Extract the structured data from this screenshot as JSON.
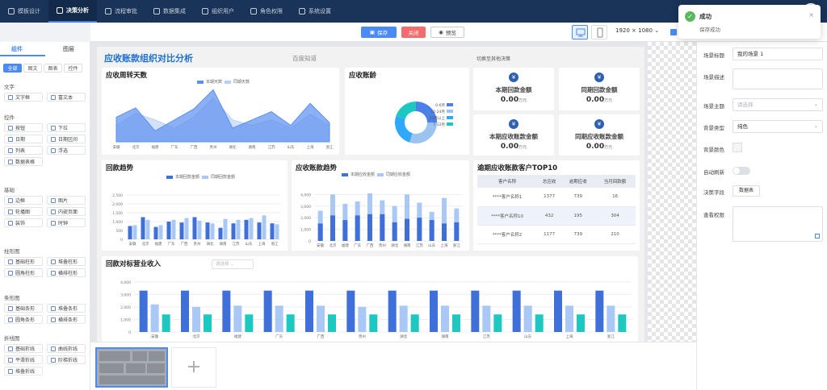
{
  "nav": {
    "items": [
      {
        "label": "模板设计",
        "icon": "template-icon"
      },
      {
        "label": "决策分析",
        "icon": "analysis-icon"
      },
      {
        "label": "流程审批",
        "icon": "workflow-icon"
      },
      {
        "label": "数据集成",
        "icon": "data-icon"
      },
      {
        "label": "组织用户",
        "icon": "org-icon"
      },
      {
        "label": "角色权限",
        "icon": "role-icon"
      },
      {
        "label": "系统设置",
        "icon": "settings-icon"
      }
    ],
    "active_index": 1
  },
  "toolbar": {
    "save": "保存",
    "close": "关闭",
    "preview": "预览",
    "resolution": "1920 × 1080"
  },
  "toast": {
    "title": "成功",
    "message": "保存成功"
  },
  "left_panel": {
    "tabs": [
      "组件",
      "图层"
    ],
    "subtabs": [
      "全部",
      "图文",
      "图表",
      "控件"
    ],
    "categories": [
      {
        "name": "文字",
        "items": [
          "文字框",
          "富文本"
        ]
      },
      {
        "name": "控件",
        "items": [
          "按钮",
          "下拉",
          "日期",
          "日期区间",
          "列表",
          "浮选",
          "数据表格"
        ]
      },
      {
        "name": "基础",
        "items": [
          "边框",
          "图片",
          "轮播图",
          "内嵌页面",
          "装饰",
          "时钟"
        ]
      },
      {
        "name": "柱形图",
        "items": [
          "基础柱形",
          "堆叠柱形",
          "圆角柱形",
          "横排柱形"
        ]
      },
      {
        "name": "条形图",
        "items": [
          "基础条形",
          "堆叠条形",
          "圆角条形",
          "横排条形"
        ]
      },
      {
        "name": "折线图",
        "items": [
          "基础折线",
          "曲线折线",
          "平滑折线",
          "阶梯折线",
          "堆叠折线"
        ]
      }
    ]
  },
  "dashboard": {
    "title": "应收账款组织对比分析",
    "subtitle": "百度知道",
    "switch_text": "切换至其他决策",
    "cards": {
      "turnover": {
        "title": "应收周转天数",
        "legend": [
          "本期天数",
          "同期天数"
        ]
      },
      "aging": {
        "title": "应收账龄"
      },
      "collection_trend": {
        "title": "回款趋势",
        "legend": [
          "本期回款金额",
          "同期回款金额"
        ]
      },
      "receivable_trend": {
        "title": "应收账款趋势",
        "legend": [
          "本期应收金额",
          "同期应收金额"
        ]
      },
      "top10": {
        "title": "逾期应收账款客户TOP10"
      },
      "revenue": {
        "title": "回款对标营业收入",
        "select_placeholder": "请选择"
      }
    },
    "stats": [
      {
        "label": "本期回款金额",
        "value": "0.00",
        "unit": "万元"
      },
      {
        "label": "同期回款金额",
        "value": "0.00",
        "unit": "万元"
      },
      {
        "label": "本期应收账款金额",
        "value": "0.00",
        "unit": "万元"
      },
      {
        "label": "同期应收账款金额",
        "value": "0.00",
        "unit": "万元"
      }
    ],
    "top10_table": {
      "columns": [
        "客户名称",
        "总应收",
        "逾期应收",
        "当月回款额"
      ],
      "rows": [
        [
          "****客户名称1",
          "1377",
          "739",
          "16"
        ],
        [
          "****客户名称10",
          "432",
          "195",
          "304"
        ],
        [
          "****客户名称2",
          "1177",
          "739",
          "210"
        ]
      ]
    }
  },
  "right_panel": {
    "fields": [
      {
        "label": "场景标题",
        "value": "我的场景 1"
      },
      {
        "label": "场景描述",
        "value": ""
      },
      {
        "label": "场景主题",
        "placeholder": "请选择"
      },
      {
        "label": "背景类型",
        "value": "纯色"
      },
      {
        "label": "背景颜色",
        "value": ""
      },
      {
        "label": "自动刷新",
        "value": ""
      },
      {
        "label": "决策字段",
        "button": "数据表"
      },
      {
        "label": "查看权限",
        "value": ""
      }
    ]
  },
  "chart_data": [
    {
      "type": "area",
      "title": "应收周转天数",
      "categories": [
        "安徽",
        "北京",
        "福建",
        "广东",
        "广西",
        "贵州",
        "湖北",
        "湖南",
        "江苏",
        "山东",
        "上海",
        "浙江"
      ],
      "series": [
        {
          "name": "本期天数",
          "values": [
            45,
            62,
            20,
            40,
            60,
            95,
            25,
            40,
            55,
            30,
            70,
            35
          ]
        },
        {
          "name": "同期天数",
          "values": [
            30,
            52,
            40,
            25,
            45,
            80,
            40,
            30,
            40,
            25,
            50,
            30
          ]
        }
      ]
    },
    {
      "type": "pie",
      "title": "应收账龄",
      "categories": [
        "0-6月",
        "12-24月",
        "24月以上",
        "7-12月"
      ],
      "values": [
        25,
        30,
        25,
        20
      ],
      "colors": [
        "#4a80e8",
        "#9cc3f0",
        "#2fa8ff",
        "#1dc8c0"
      ]
    },
    {
      "type": "bar",
      "title": "回款趋势",
      "categories": [
        "安徽",
        "北京",
        "福建",
        "广东",
        "广西",
        "贵州",
        "湖北",
        "湖南",
        "江苏",
        "山东",
        "上海",
        "浙江"
      ],
      "ylim": [
        0,
        3000
      ],
      "yticks": [
        "0",
        "500",
        "1,000",
        "1,500",
        "2,000",
        "2,500"
      ],
      "series": [
        {
          "name": "本期回款金额",
          "values": [
            750,
            1250,
            700,
            1000,
            950,
            1250,
            950,
            650,
            900,
            1100,
            950,
            900
          ]
        },
        {
          "name": "同期回款金额",
          "values": [
            800,
            1100,
            800,
            1100,
            1200,
            1050,
            900,
            1150,
            1100,
            1200,
            1350,
            850
          ]
        }
      ]
    },
    {
      "type": "bar",
      "title": "应收账款趋势",
      "categories": [
        "安徽",
        "北京",
        "福建",
        "广东",
        "广西",
        "贵州",
        "湖北",
        "湖南",
        "江苏",
        "山东",
        "上海",
        "浙江"
      ],
      "ylim": [
        0,
        5000
      ],
      "yticks": [
        "0",
        "1,000",
        "2,000",
        "3,000",
        "4,000"
      ],
      "series": [
        {
          "name": "本期应收金额",
          "values": [
            1500,
            2200,
            1800,
            2200,
            2300,
            2300,
            1600,
            1900,
            2000,
            1800,
            1500,
            1600
          ]
        },
        {
          "name": "同期应收金额",
          "values": [
            2600,
            4000,
            3200,
            3400,
            4100,
            3500,
            3000,
            4000,
            3300,
            2500,
            3700,
            2800
          ]
        }
      ]
    },
    {
      "type": "bar",
      "title": "回款对标营业收入",
      "categories": [
        "安徽",
        "北京",
        "福建",
        "广东",
        "广西",
        "贵州",
        "湖北",
        "湖南",
        "江苏",
        "山东",
        "上海",
        "浙江"
      ],
      "ylim": [
        0,
        4500
      ],
      "yticks": [
        "0",
        "1,000",
        "2,000",
        "3,000",
        "4,000"
      ],
      "series": [
        {
          "values": [
            3300,
            3300,
            3300,
            3300,
            3300,
            3300,
            3300,
            3300,
            3300,
            3300,
            3300,
            3300
          ]
        },
        {
          "values": [
            2200,
            2000,
            2100,
            2100,
            2100,
            2000,
            2100,
            2100,
            2100,
            2100,
            2100,
            2100
          ]
        },
        {
          "values": [
            1400,
            1400,
            1400,
            1400,
            1400,
            1400,
            1400,
            1400,
            1400,
            1400,
            1400,
            1400
          ]
        }
      ]
    }
  ]
}
